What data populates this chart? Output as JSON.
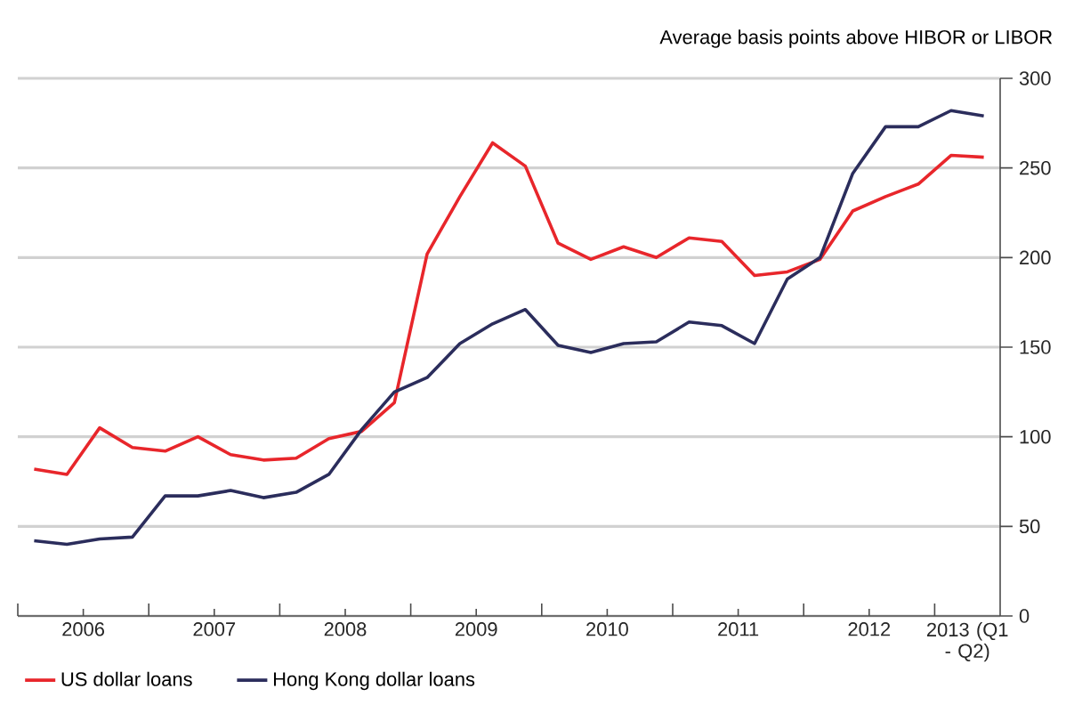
{
  "chart_data": {
    "type": "line",
    "ylabel": "Average basis points above HIBOR or LIBOR",
    "x": [
      2006.125,
      2006.375,
      2006.625,
      2006.875,
      2007.125,
      2007.375,
      2007.625,
      2007.875,
      2008.125,
      2008.375,
      2008.625,
      2008.875,
      2009.125,
      2009.375,
      2009.625,
      2009.875,
      2010.125,
      2010.375,
      2010.625,
      2010.875,
      2011.125,
      2011.375,
      2011.625,
      2011.875,
      2012.125,
      2012.375,
      2012.625,
      2012.875,
      2013.125,
      2013.375
    ],
    "series": [
      {
        "name": "US dollar loans",
        "color": "#e8262b",
        "values": [
          82,
          79,
          105,
          94,
          92,
          100,
          90,
          87,
          88,
          99,
          103,
          119,
          202,
          234,
          264,
          251,
          208,
          199,
          206,
          200,
          211,
          209,
          190,
          192,
          199,
          226,
          234,
          241,
          257,
          256
        ]
      },
      {
        "name": "Hong Kong dollar loans",
        "color": "#2b2d5c",
        "values": [
          42,
          40,
          43,
          44,
          67,
          67,
          70,
          66,
          69,
          79,
          104,
          125,
          133,
          152,
          163,
          171,
          151,
          147,
          152,
          153,
          164,
          162,
          152,
          188,
          200,
          247,
          273,
          273,
          282,
          279
        ]
      }
    ],
    "xlim": [
      2006,
      2013.5
    ],
    "xticks": [
      {
        "value": 2006,
        "label": null
      },
      {
        "value": 2006.5,
        "label": "2006"
      },
      {
        "value": 2007,
        "label": null
      },
      {
        "value": 2007.5,
        "label": "2007"
      },
      {
        "value": 2008,
        "label": null
      },
      {
        "value": 2008.5,
        "label": "2008"
      },
      {
        "value": 2009,
        "label": null
      },
      {
        "value": 2009.5,
        "label": "2009"
      },
      {
        "value": 2010,
        "label": null
      },
      {
        "value": 2010.5,
        "label": "2010"
      },
      {
        "value": 2011,
        "label": null
      },
      {
        "value": 2011.5,
        "label": "2011"
      },
      {
        "value": 2012,
        "label": null
      },
      {
        "value": 2012.5,
        "label": "2012"
      },
      {
        "value": 2013,
        "label": null
      },
      {
        "value": 2013.25,
        "label": "2013 (Q1 - Q2)"
      }
    ],
    "ylim": [
      0,
      300
    ],
    "yticks": [
      0,
      50,
      100,
      150,
      200,
      250,
      300
    ],
    "grid": "y",
    "legend": "bottom left",
    "marker": "none",
    "line_style": "solid"
  }
}
